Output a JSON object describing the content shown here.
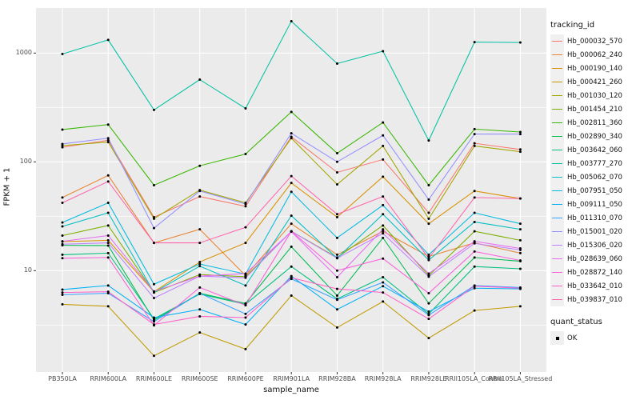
{
  "figure": {
    "xlabel": "sample_name",
    "ylabel": "FPKM + 1",
    "legend_title": "tracking_id",
    "quant_title": "quant_status",
    "quant_label": "OK"
  },
  "chart_data": {
    "type": "line",
    "title": "",
    "xlabel": "sample_name",
    "ylabel": "FPKM + 1",
    "x_categories": [
      "PB350LA",
      "RRIM600LA",
      "RRIM600LE",
      "RRIM600SE",
      "RRIM600PE",
      "RRIM901LA",
      "RRIM928BA",
      "RRIM928LA",
      "RRIM928LE",
      "RRII105LA_Control",
      "RRII105LA_Stressed"
    ],
    "y_scale": "log10",
    "y_major_ticks": [
      10,
      100,
      1000
    ],
    "y_minor_ticks": [
      3.162,
      31.62,
      316.2
    ],
    "y_range": [
      1.17,
      2600
    ],
    "grid": true,
    "panel_background": "#EBEBEB",
    "gridline_color": "#FFFFFF",
    "point_color": "#000000",
    "legend_position": "right",
    "legend_title": "tracking_id",
    "quant_status": {
      "title": "quant_status",
      "entries": [
        "OK"
      ]
    },
    "series": [
      {
        "name": "Hb_000032_570",
        "color": "#F8766D",
        "values": [
          136,
          158,
          31,
          48,
          39,
          170,
          80,
          105,
          34,
          148,
          130
        ]
      },
      {
        "name": "Hb_000062_240",
        "color": "#EA8331",
        "values": [
          47,
          75,
          18,
          24,
          9,
          27,
          14,
          23,
          13.5,
          18,
          14.5
        ]
      },
      {
        "name": "Hb_000190_140",
        "color": "#D89000",
        "values": [
          18.5,
          19,
          6.4,
          12,
          18,
          64,
          31,
          73,
          27,
          54,
          46
        ]
      },
      {
        "name": "Hb_000421_260",
        "color": "#C09B00",
        "values": [
          4.9,
          4.7,
          1.65,
          2.7,
          1.9,
          5.9,
          3.0,
          5.2,
          2.4,
          4.3,
          4.7
        ]
      },
      {
        "name": "Hb_001030_120",
        "color": "#A3A500",
        "values": [
          141,
          152,
          30,
          55,
          42,
          165,
          62,
          140,
          30,
          140,
          124
        ]
      },
      {
        "name": "Hb_001454_210",
        "color": "#7CAE00",
        "values": [
          21,
          26,
          6.3,
          9.2,
          8.8,
          23,
          13.2,
          26,
          9,
          23,
          19
        ]
      },
      {
        "name": "Hb_002811_360",
        "color": "#39B600",
        "values": [
          198,
          220,
          61,
          92,
          118,
          288,
          120,
          230,
          61,
          200,
          188
        ]
      },
      {
        "name": "Hb_002890_340",
        "color": "#00BB4E",
        "values": [
          17.1,
          17,
          3.5,
          6.2,
          5.0,
          16.6,
          5.9,
          20,
          5.0,
          13.2,
          12.2
        ]
      },
      {
        "name": "Hb_003642_060",
        "color": "#00BF7D",
        "values": [
          14,
          14.5,
          3.6,
          6.1,
          4.9,
          10.9,
          5.5,
          8.7,
          4.0,
          10.9,
          10.4
        ]
      },
      {
        "name": "Hb_003777_270",
        "color": "#00C1A3",
        "values": [
          980,
          1320,
          300,
          570,
          310,
          1960,
          800,
          1040,
          157,
          1260,
          1250
        ]
      },
      {
        "name": "Hb_005062_070",
        "color": "#00BFC4",
        "values": [
          25.5,
          34,
          6.3,
          11,
          7.3,
          32,
          13,
          33,
          12.5,
          28,
          24
        ]
      },
      {
        "name": "Hb_007951_050",
        "color": "#00BAE0",
        "values": [
          27.7,
          42,
          7.5,
          11.5,
          9.3,
          53,
          20,
          40,
          14,
          34,
          27
        ]
      },
      {
        "name": "Hb_009111_050",
        "color": "#00B0F6",
        "values": [
          6.7,
          7.3,
          3.7,
          4.4,
          3.2,
          8.9,
          4.4,
          7.2,
          4.2,
          6.9,
          6.8
        ]
      },
      {
        "name": "Hb_011310_070",
        "color": "#35A2FF",
        "values": [
          6.0,
          6.2,
          3.4,
          6.2,
          4.0,
          8.4,
          5.4,
          7.8,
          3.9,
          7.3,
          7.0
        ]
      },
      {
        "name": "Hb_015001_020",
        "color": "#9590FF",
        "values": [
          146,
          165,
          24.6,
          54,
          41,
          183,
          100,
          175,
          45,
          180,
          180
        ]
      },
      {
        "name": "Hb_015306_020",
        "color": "#BF80FF",
        "values": [
          17.5,
          18,
          5.6,
          8.9,
          8.6,
          23,
          13,
          22,
          8.8,
          17.8,
          15.5
        ]
      },
      {
        "name": "Hb_028639_060",
        "color": "#E76BF3",
        "values": [
          18.6,
          21,
          6.45,
          8.9,
          9.4,
          22.8,
          8.7,
          24,
          9.4,
          18.6,
          16
        ]
      },
      {
        "name": "Hb_028872_140",
        "color": "#FA62DB",
        "values": [
          13,
          13.2,
          3.14,
          7.0,
          4.8,
          23,
          10,
          12.9,
          6.2,
          15,
          12.4
        ]
      },
      {
        "name": "Hb_033642_010",
        "color": "#FF61C9",
        "values": [
          6.3,
          6.4,
          3.2,
          3.8,
          3.7,
          8.6,
          6.8,
          6.3,
          3.6,
          7.2,
          6.9
        ]
      },
      {
        "name": "Hb_039837_010",
        "color": "#FF65AC",
        "values": [
          42,
          66,
          18,
          18,
          25,
          74,
          33,
          48,
          13,
          47,
          46
        ]
      }
    ]
  }
}
